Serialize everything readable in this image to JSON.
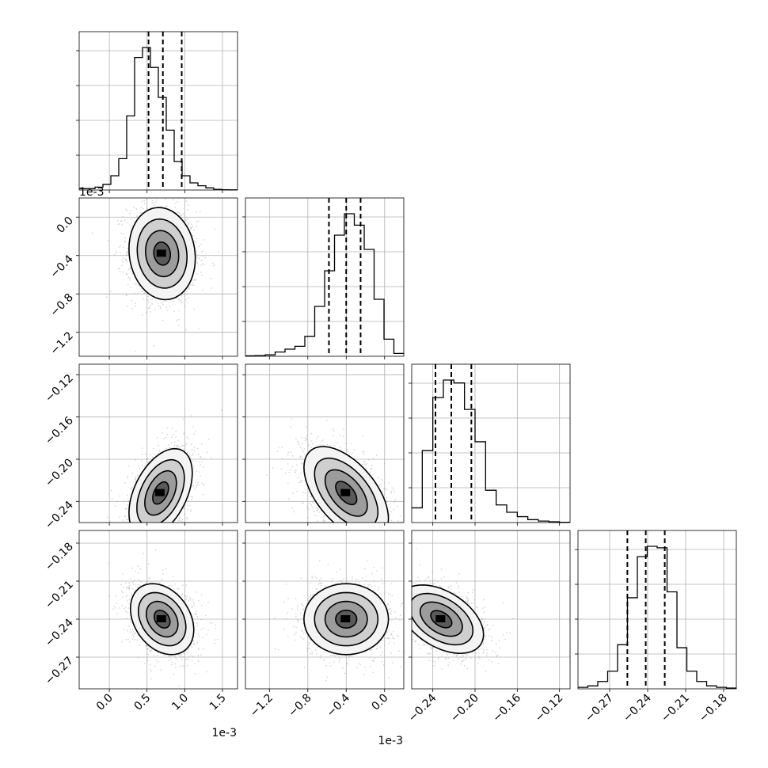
{
  "chart_data": {
    "type": "corner",
    "parameters": [
      {
        "range": [
          -0.4,
          1.7
        ],
        "ticks": [
          0.0,
          0.5,
          1.0,
          1.5
        ],
        "tick_labels": [
          "0.0",
          "0.5",
          "1.0",
          "1.5"
        ],
        "offset_label": "1e-3",
        "quantiles": [
          0.52,
          0.71,
          0.96
        ],
        "histogram": [
          0.01,
          0.01,
          0.02,
          0.04,
          0.1,
          0.22,
          0.52,
          0.93,
          1.0,
          0.86,
          0.65,
          0.42,
          0.2,
          0.1,
          0.05,
          0.03,
          0.015,
          0.005,
          0.002,
          0.001
        ]
      },
      {
        "range": [
          -1.45,
          0.2
        ],
        "ticks": [
          -1.2,
          -0.8,
          -0.4,
          0.0
        ],
        "tick_labels": [
          "−1.2",
          "−0.8",
          "−0.4",
          "0.0"
        ],
        "offset_label": "1e-3",
        "quantiles": [
          -0.58,
          -0.4,
          -0.25
        ],
        "histogram": [
          0.003,
          0.005,
          0.01,
          0.03,
          0.05,
          0.07,
          0.14,
          0.35,
          0.6,
          0.85,
          1.0,
          0.92,
          0.75,
          0.4,
          0.12,
          0.02
        ]
      },
      {
        "range": [
          -0.26,
          -0.11
        ],
        "ticks": [
          -0.24,
          -0.2,
          -0.16,
          -0.12
        ],
        "tick_labels": [
          "−0.24",
          "−0.20",
          "−0.16",
          "−0.12"
        ],
        "offset_label": "",
        "quantiles": [
          -0.2375,
          -0.2225,
          -0.2035
        ],
        "histogram": [
          0.1,
          0.49,
          0.85,
          0.97,
          0.95,
          0.77,
          0.55,
          0.22,
          0.12,
          0.07,
          0.04,
          0.02,
          0.01,
          0.005,
          0.002
        ]
      },
      {
        "range": [
          -0.295,
          -0.17
        ],
        "ticks": [
          -0.27,
          -0.24,
          -0.21,
          -0.18
        ],
        "tick_labels": [
          "−0.27",
          "−0.24",
          "−0.21",
          "−0.18"
        ],
        "offset_label": "",
        "quantiles": [
          -0.256,
          -0.2415,
          -0.2265
        ],
        "histogram": [
          0.01,
          0.02,
          0.05,
          0.12,
          0.3,
          0.62,
          0.9,
          0.97,
          0.96,
          0.66,
          0.28,
          0.12,
          0.05,
          0.02,
          0.01,
          0.005
        ]
      }
    ],
    "pairs": [
      {
        "row": 1,
        "col": 0,
        "mean": [
          0.7,
          -0.38
        ],
        "sd": [
          0.22,
          0.24
        ],
        "rho": -0.1
      },
      {
        "row": 2,
        "col": 0,
        "mean": [
          0.68,
          -0.232
        ],
        "sd": [
          0.21,
          0.021
        ],
        "rho": 0.45
      },
      {
        "row": 2,
        "col": 1,
        "mean": [
          -0.4,
          -0.232
        ],
        "sd": [
          0.22,
          0.022
        ],
        "rho": -0.55
      },
      {
        "row": 3,
        "col": 0,
        "mean": [
          0.7,
          -0.24
        ],
        "sd": [
          0.21,
          0.014
        ],
        "rho": -0.3
      },
      {
        "row": 3,
        "col": 1,
        "mean": [
          -0.4,
          -0.24
        ],
        "sd": [
          0.22,
          0.014
        ],
        "rho": 0.0
      },
      {
        "row": 3,
        "col": 2,
        "mean": [
          -0.232,
          -0.24
        ],
        "sd": [
          0.02,
          0.0135
        ],
        "rho": -0.45
      }
    ],
    "contour_levels_sigma": [
      0.5,
      1.0,
      1.5,
      2.0
    ],
    "grid": true
  }
}
